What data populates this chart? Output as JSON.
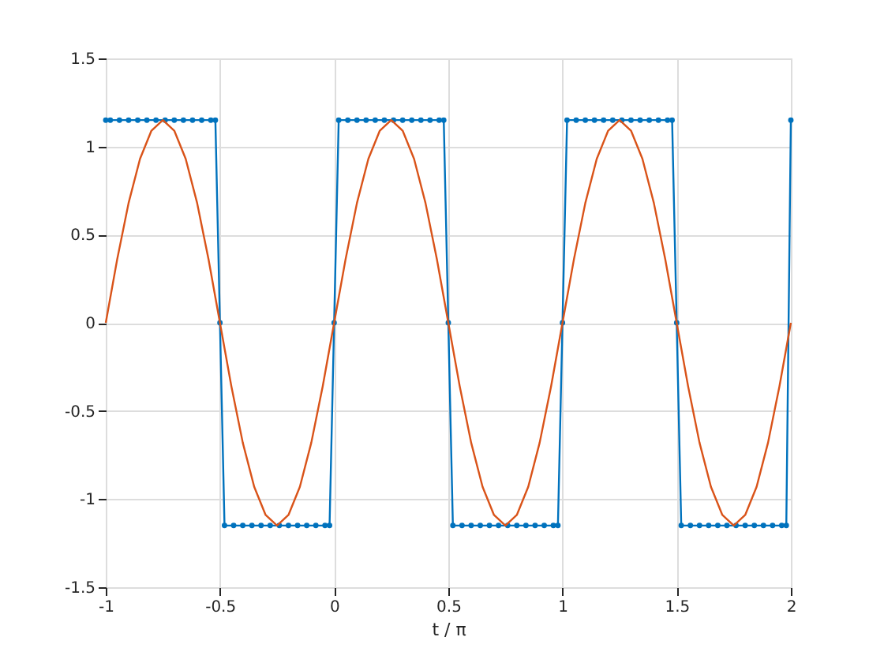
{
  "chart_data": {
    "type": "line",
    "xlabel": "t / π",
    "xlim": [
      -1,
      2
    ],
    "ylim": [
      -1.5,
      1.5
    ],
    "xticks": [
      -1,
      -0.5,
      0,
      0.5,
      1,
      1.5,
      2
    ],
    "yticks": [
      -1.5,
      -1,
      -0.5,
      0,
      0.5,
      1,
      1.5
    ],
    "grid": true,
    "series": [
      {
        "color": "#0072bd",
        "marker": "circle",
        "x": [
          -1,
          -0.98,
          -0.94,
          -0.9,
          -0.86,
          -0.82,
          -0.78,
          -0.74,
          -0.7,
          -0.66,
          -0.62,
          -0.58,
          -0.54,
          -0.52,
          -0.5,
          -0.48,
          -0.44,
          -0.4,
          -0.36,
          -0.32,
          -0.28,
          -0.24,
          -0.2,
          -0.16,
          -0.12,
          -0.08,
          -0.04,
          -0.02,
          0,
          0.02,
          0.06,
          0.1,
          0.14,
          0.18,
          0.22,
          0.26,
          0.3,
          0.34,
          0.38,
          0.42,
          0.46,
          0.48,
          0.5,
          0.52,
          0.56,
          0.6,
          0.64,
          0.68,
          0.72,
          0.76,
          0.8,
          0.84,
          0.88,
          0.92,
          0.96,
          0.98,
          1,
          1.02,
          1.06,
          1.1,
          1.14,
          1.18,
          1.22,
          1.26,
          1.3,
          1.34,
          1.38,
          1.42,
          1.46,
          1.48,
          1.5,
          1.52,
          1.56,
          1.6,
          1.64,
          1.68,
          1.72,
          1.76,
          1.8,
          1.84,
          1.88,
          1.92,
          1.96,
          1.98,
          2
        ],
        "values": [
          1.15,
          1.15,
          1.15,
          1.15,
          1.15,
          1.15,
          1.15,
          1.15,
          1.15,
          1.15,
          1.15,
          1.15,
          1.15,
          1.15,
          0,
          -1.15,
          -1.15,
          -1.15,
          -1.15,
          -1.15,
          -1.15,
          -1.15,
          -1.15,
          -1.15,
          -1.15,
          -1.15,
          -1.15,
          -1.15,
          0,
          1.15,
          1.15,
          1.15,
          1.15,
          1.15,
          1.15,
          1.15,
          1.15,
          1.15,
          1.15,
          1.15,
          1.15,
          1.15,
          0,
          -1.15,
          -1.15,
          -1.15,
          -1.15,
          -1.15,
          -1.15,
          -1.15,
          -1.15,
          -1.15,
          -1.15,
          -1.15,
          -1.15,
          -1.15,
          0,
          1.15,
          1.15,
          1.15,
          1.15,
          1.15,
          1.15,
          1.15,
          1.15,
          1.15,
          1.15,
          1.15,
          1.15,
          1.15,
          0,
          -1.15,
          -1.15,
          -1.15,
          -1.15,
          -1.15,
          -1.15,
          -1.15,
          -1.15,
          -1.15,
          -1.15,
          -1.15,
          -1.15,
          -1.15,
          1.15
        ]
      },
      {
        "color": "#d95319",
        "marker": "none",
        "x": [
          -1,
          -0.95,
          -0.9,
          -0.85,
          -0.8,
          -0.75,
          -0.7,
          -0.65,
          -0.6,
          -0.55,
          -0.5,
          -0.45,
          -0.4,
          -0.35,
          -0.3,
          -0.25,
          -0.2,
          -0.15,
          -0.1,
          -0.05,
          0,
          0.05,
          0.1,
          0.15,
          0.2,
          0.25,
          0.3,
          0.35,
          0.4,
          0.45,
          0.5,
          0.55,
          0.6,
          0.65,
          0.7,
          0.75,
          0.8,
          0.85,
          0.9,
          0.95,
          1,
          1.05,
          1.1,
          1.15,
          1.2,
          1.25,
          1.3,
          1.35,
          1.4,
          1.45,
          1.5,
          1.55,
          1.6,
          1.65,
          1.7,
          1.75,
          1.8,
          1.85,
          1.9,
          1.95,
          2
        ],
        "values": [
          0,
          0.36,
          0.68,
          0.93,
          1.09,
          1.15,
          1.09,
          0.93,
          0.68,
          0.36,
          0,
          -0.36,
          -0.68,
          -0.93,
          -1.09,
          -1.15,
          -1.09,
          -0.93,
          -0.68,
          -0.36,
          0,
          0.36,
          0.68,
          0.93,
          1.09,
          1.15,
          1.09,
          0.93,
          0.68,
          0.36,
          0,
          -0.36,
          -0.68,
          -0.93,
          -1.09,
          -1.15,
          -1.09,
          -0.93,
          -0.68,
          -0.36,
          0,
          0.36,
          0.68,
          0.93,
          1.09,
          1.15,
          1.09,
          0.93,
          0.68,
          0.36,
          0,
          -0.36,
          -0.68,
          -0.93,
          -1.09,
          -1.15,
          -1.09,
          -0.93,
          -0.68,
          -0.36,
          0
        ]
      }
    ]
  }
}
